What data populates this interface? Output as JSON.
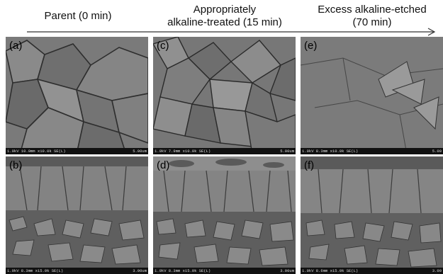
{
  "columns": [
    {
      "heading_line1": "Parent (0 min)",
      "heading_line2": ""
    },
    {
      "heading_line1": "Appropriately",
      "heading_line2": "alkaline-treated (15 min)"
    },
    {
      "heading_line1": "Excess alkaline-etched",
      "heading_line2": "(70 min)"
    }
  ],
  "panels": {
    "a": {
      "label": "(a)",
      "info": "1.0kV 10.0mm x10.0k SE(L)",
      "scale": "5.00um"
    },
    "b": {
      "label": "(b)",
      "info": "1.0kV 8.3mm x15.0k SE(L)",
      "scale": "3.00um"
    },
    "c": {
      "label": "(c)",
      "info": "1.0kV 7.9mm x10.0k SE(L)",
      "scale": "5.00um"
    },
    "d": {
      "label": "(d)",
      "info": "1.0kV 8.3mm x15.0k SE(L)",
      "scale": "3.00um"
    },
    "e": {
      "label": "(e)",
      "info": "1.0kV 8.3mm x10.0k SE(L)",
      "scale": "5.00"
    },
    "f": {
      "label": "(f)",
      "info": "1.0kV 8.6mm x15.0k SE(L)",
      "scale": "3.00"
    }
  },
  "colors": {
    "arrow": "#333333",
    "panel_base": "#6e6e6e"
  }
}
